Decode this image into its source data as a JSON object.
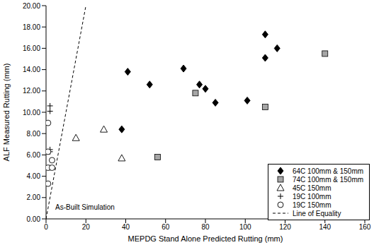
{
  "chart_data": {
    "type": "scatter",
    "x_label": "MEPDG Stand Alone Predicted Rutting (mm)",
    "y_label": "ALF Measured Rutting (mm)",
    "annotation": "As-Built Simulation",
    "xlim": [
      0,
      160
    ],
    "xticks": [
      0,
      20,
      40,
      60,
      80,
      100,
      120,
      140,
      160
    ],
    "ylim": [
      0,
      20
    ],
    "yticks": [
      {
        "value": 0,
        "label": "0.00"
      },
      {
        "value": 2,
        "label": "2.00"
      },
      {
        "value": 4,
        "label": "4.00"
      },
      {
        "value": 6,
        "label": "6.00"
      },
      {
        "value": 8,
        "label": "8.00"
      },
      {
        "value": 10,
        "label": "10.00"
      },
      {
        "value": 12,
        "label": "12.00"
      },
      {
        "value": 14,
        "label": "14.00"
      },
      {
        "value": 16,
        "label": "16.00"
      },
      {
        "value": 18,
        "label": "18.00"
      },
      {
        "value": 20,
        "label": "20.00"
      }
    ],
    "grid": false,
    "legend": "lower right",
    "series": [
      {
        "name": "64C 100mm & 150mm",
        "color": "#000000",
        "marker": "diamond",
        "x": [
          41,
          52,
          69,
          77,
          80,
          85,
          38,
          101,
          110,
          110,
          116
        ],
        "values": [
          13.8,
          12.6,
          14.1,
          12.6,
          12.2,
          10.9,
          8.4,
          11.1,
          17.3,
          15.1,
          16.0
        ]
      },
      {
        "name": "74C 100mm & 150mm",
        "color": "#a6a6a6",
        "marker": "square",
        "x": [
          56,
          75,
          110,
          140
        ],
        "values": [
          5.8,
          11.8,
          10.5,
          15.5
        ]
      },
      {
        "name": "45C 150mm",
        "color": "#000000",
        "marker": "triangle-open",
        "x": [
          15,
          29,
          38
        ],
        "values": [
          7.6,
          8.4,
          5.7
        ]
      },
      {
        "name": "19C 100mm",
        "color": "#000000",
        "marker": "plus",
        "x": [
          2,
          2,
          2,
          2,
          2
        ],
        "values": [
          10.6,
          10.1,
          6.5,
          6.3,
          4.8
        ]
      },
      {
        "name": "19C 150mm",
        "color": "#000000",
        "marker": "circle-open",
        "x": [
          1,
          1,
          1,
          3,
          3,
          1
        ],
        "values": [
          9.0,
          6.3,
          4.8,
          5.5,
          4.8,
          3.3
        ]
      },
      {
        "name": "Line of Equality",
        "color": "#000000",
        "type": "line",
        "line_style": "dashed",
        "x": [
          0,
          20
        ],
        "values": [
          0,
          20
        ]
      }
    ]
  }
}
